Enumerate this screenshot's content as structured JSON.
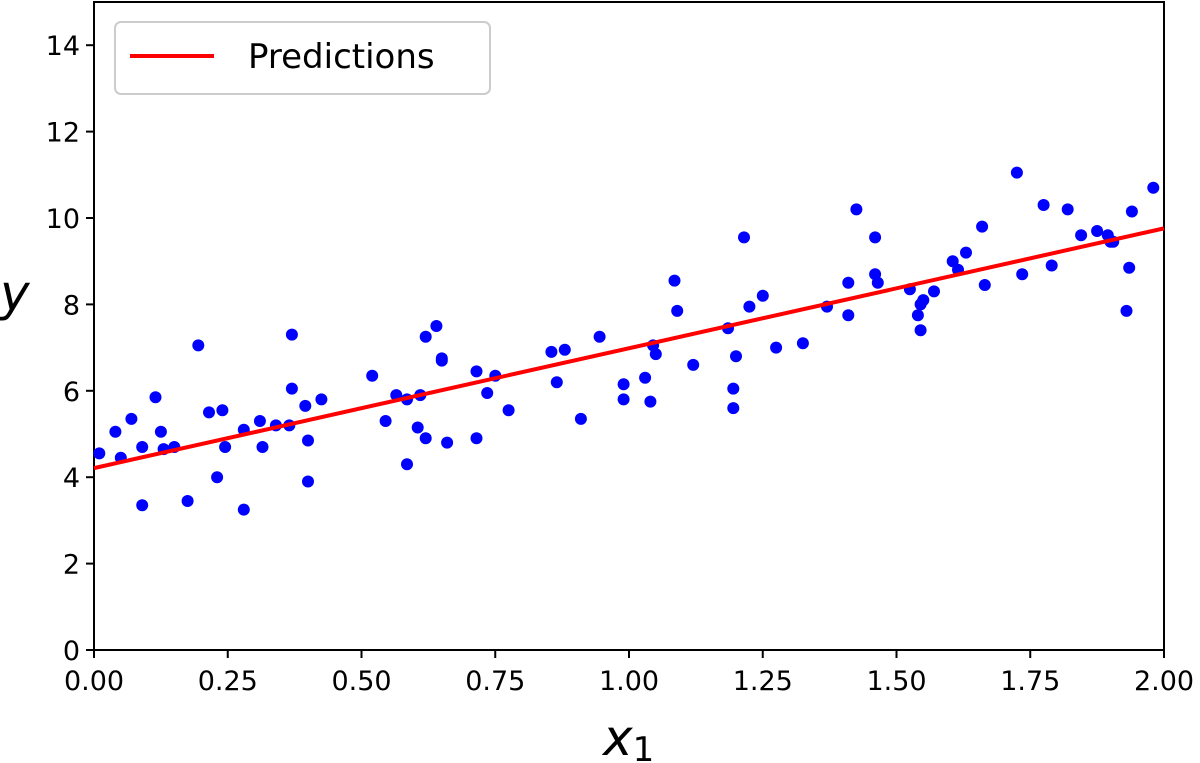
{
  "chart_data": {
    "type": "scatter",
    "title": "",
    "xlabel": "x",
    "xlabel_subscript": "1",
    "ylabel": "y",
    "xlim": [
      0,
      2
    ],
    "ylim": [
      0,
      15
    ],
    "x_ticks": [
      "0.00",
      "0.25",
      "0.50",
      "0.75",
      "1.00",
      "1.25",
      "1.50",
      "1.75",
      "2.00"
    ],
    "y_ticks": [
      "0",
      "2",
      "4",
      "6",
      "8",
      "10",
      "12",
      "14"
    ],
    "x_tick_values": [
      0,
      0.25,
      0.5,
      0.75,
      1.0,
      1.25,
      1.5,
      1.75,
      2.0
    ],
    "y_tick_values": [
      0,
      2,
      4,
      6,
      8,
      10,
      12,
      14
    ],
    "grid": false,
    "legend": {
      "position": "top-left",
      "entries": [
        "Predictions"
      ]
    },
    "colors": {
      "points": "#0000ff",
      "line": "#ff0000",
      "axes": "#000000"
    },
    "series": [
      {
        "kind": "line",
        "name": "Predictions",
        "x": [
          0,
          2
        ],
        "y": [
          4.21,
          9.76
        ]
      },
      {
        "kind": "scatter",
        "x": [
          0.01,
          0.04,
          0.05,
          0.07,
          0.09,
          0.09,
          0.115,
          0.125,
          0.13,
          0.15,
          0.175,
          0.195,
          0.215,
          0.23,
          0.24,
          0.245,
          0.28,
          0.28,
          0.31,
          0.315,
          0.34,
          0.365,
          0.37,
          0.37,
          0.395,
          0.4,
          0.4,
          0.425,
          0.52,
          0.545,
          0.565,
          0.585,
          0.585,
          0.605,
          0.61,
          0.62,
          0.62,
          0.64,
          0.65,
          0.65,
          0.66,
          0.715,
          0.715,
          0.735,
          0.75,
          0.775,
          0.855,
          0.865,
          0.88,
          0.91,
          0.945,
          0.99,
          0.99,
          1.03,
          1.04,
          1.045,
          1.05,
          1.085,
          1.09,
          1.12,
          1.185,
          1.195,
          1.195,
          1.2,
          1.215,
          1.225,
          1.25,
          1.275,
          1.325,
          1.37,
          1.41,
          1.41,
          1.425,
          1.46,
          1.46,
          1.465,
          1.525,
          1.54,
          1.545,
          1.545,
          1.55,
          1.57,
          1.605,
          1.615,
          1.63,
          1.66,
          1.665,
          1.725,
          1.735,
          1.775,
          1.79,
          1.82,
          1.845,
          1.875,
          1.895,
          1.9,
          1.905,
          1.93,
          1.935,
          1.94,
          1.98
        ],
        "y": [
          4.55,
          5.05,
          4.45,
          5.35,
          3.35,
          4.7,
          5.85,
          5.05,
          4.65,
          4.7,
          3.45,
          7.05,
          5.5,
          4.0,
          5.55,
          4.7,
          3.25,
          5.1,
          5.3,
          4.7,
          5.2,
          5.2,
          6.05,
          7.3,
          5.65,
          3.9,
          4.85,
          5.8,
          6.35,
          5.3,
          5.9,
          4.3,
          5.8,
          5.15,
          5.9,
          4.9,
          7.25,
          7.5,
          6.75,
          6.7,
          4.8,
          6.45,
          4.9,
          5.95,
          6.35,
          5.55,
          6.9,
          6.2,
          6.95,
          5.35,
          7.25,
          6.15,
          5.8,
          6.3,
          5.75,
          7.05,
          6.85,
          8.55,
          7.85,
          6.6,
          7.45,
          6.05,
          5.6,
          6.8,
          9.55,
          7.95,
          8.2,
          7.0,
          7.1,
          7.95,
          8.5,
          7.75,
          10.2,
          9.55,
          8.7,
          8.5,
          8.35,
          7.75,
          7.4,
          8.0,
          8.1,
          8.3,
          9.0,
          8.8,
          9.2,
          9.8,
          8.45,
          11.05,
          8.7,
          10.3,
          8.9,
          10.2,
          9.6,
          9.7,
          9.6,
          9.45,
          9.45,
          7.85,
          8.85,
          10.15,
          10.7
        ]
      }
    ]
  }
}
